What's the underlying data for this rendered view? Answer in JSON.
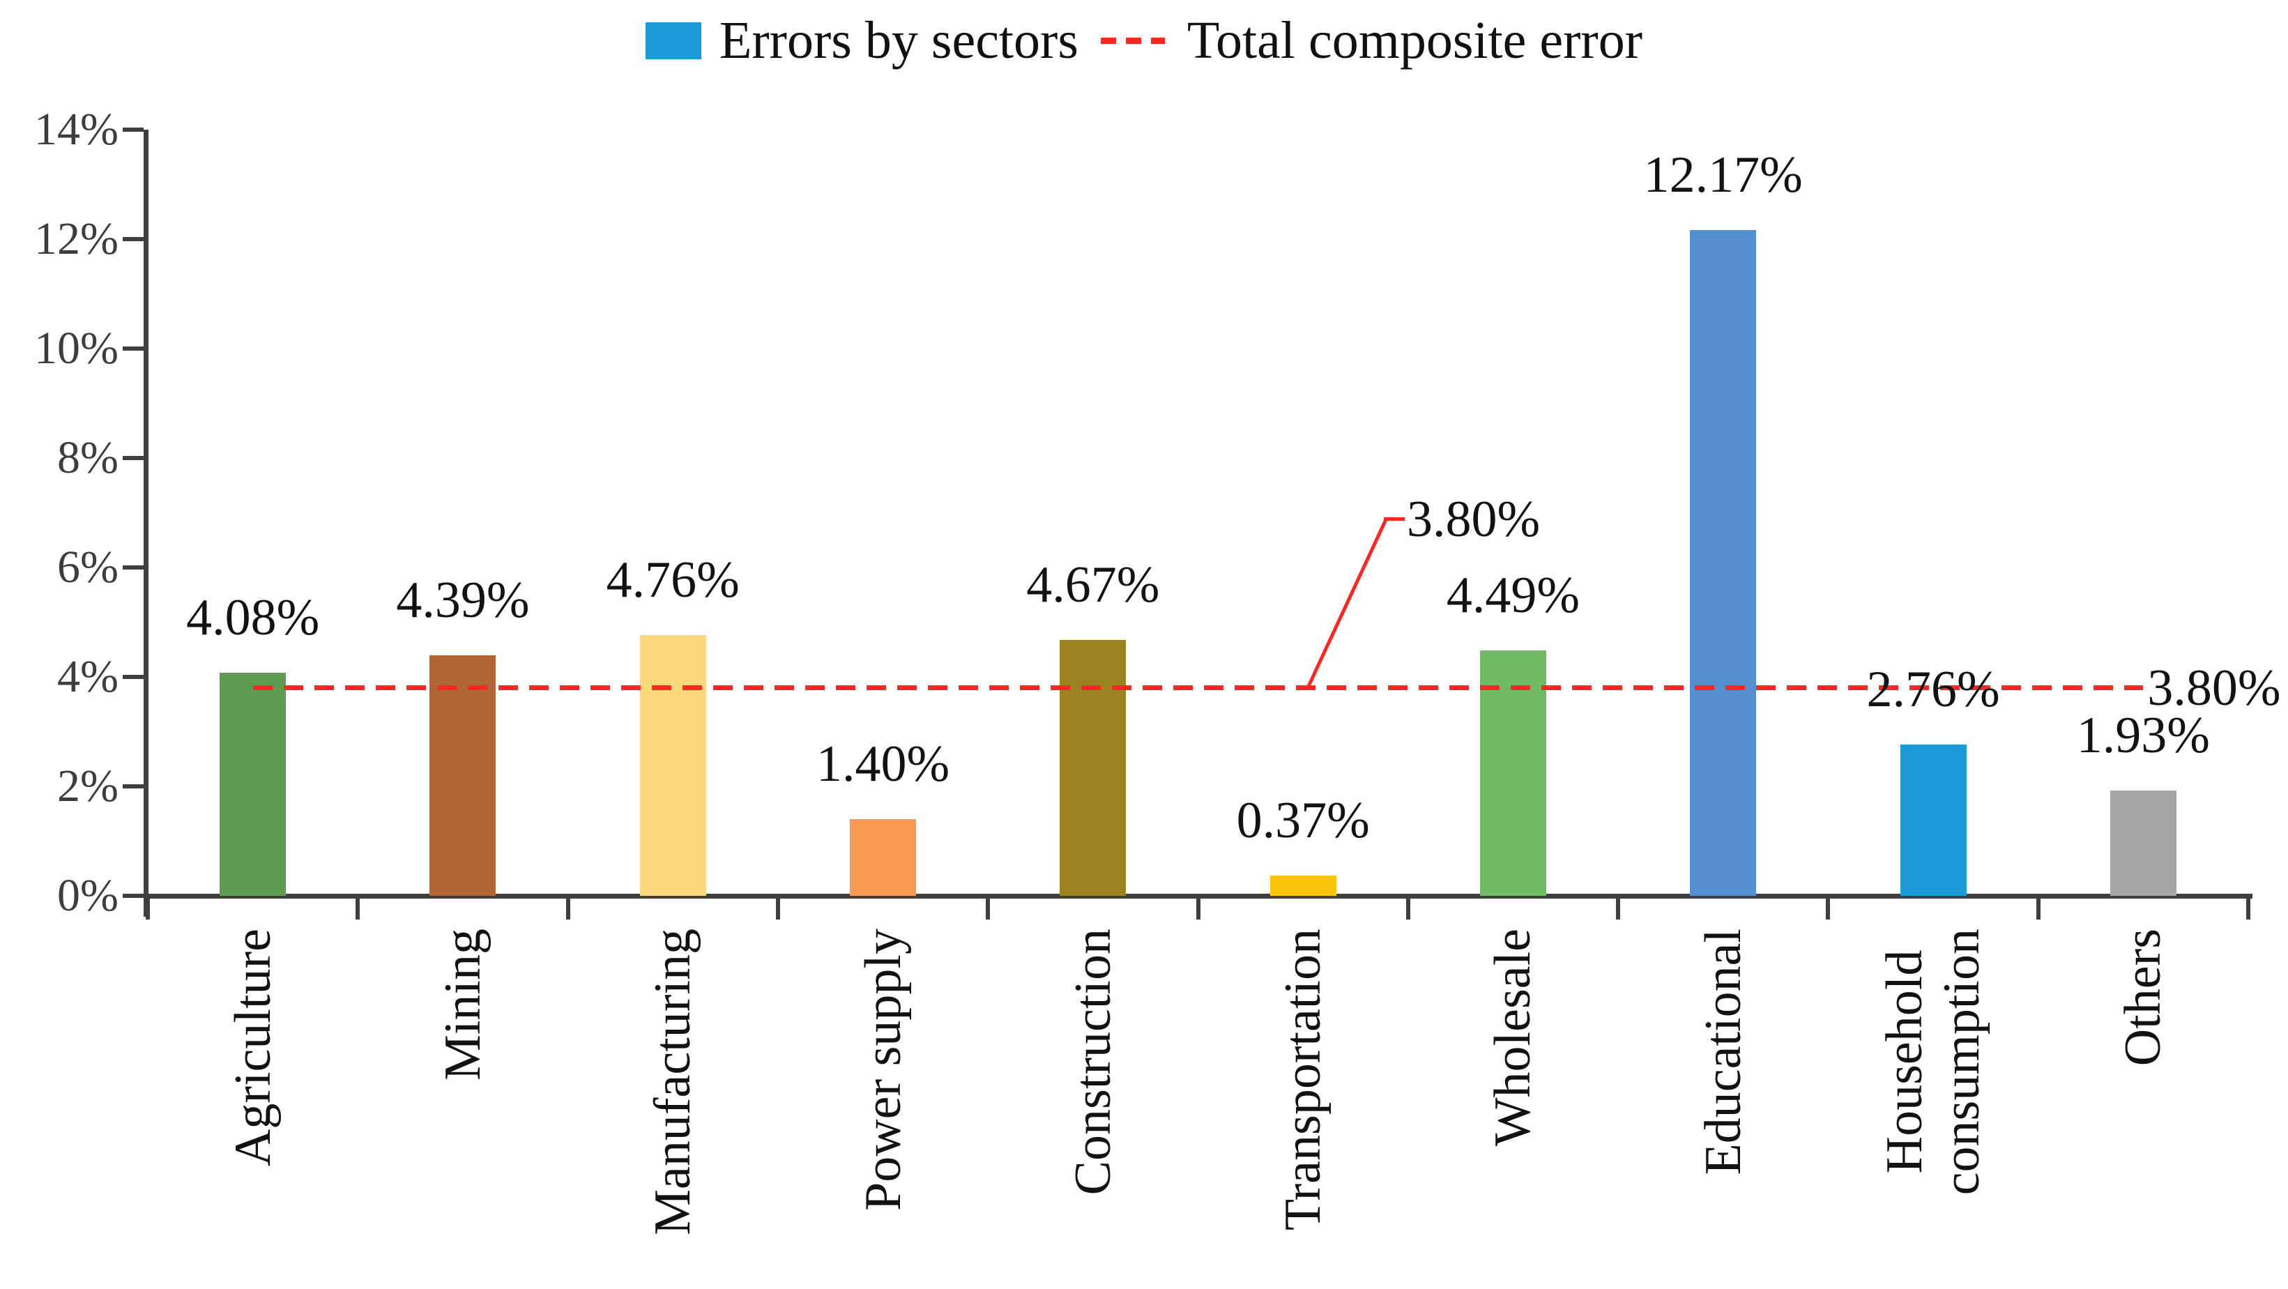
{
  "legend": {
    "bars_label": "Errors by sectors",
    "line_label": "Total composite error"
  },
  "chart_data": {
    "type": "bar",
    "title": "",
    "xlabel": "",
    "ylabel": "",
    "categories": [
      "Agriculture",
      "Mining",
      "Manufacturing",
      "Power supply",
      "Construction",
      "Transportation",
      "Wholesale",
      "Educational",
      "Household consumption",
      "Others"
    ],
    "category_lines": [
      [
        "Agriculture"
      ],
      [
        "Mining"
      ],
      [
        "Manufacturing"
      ],
      [
        "Power supply"
      ],
      [
        "Construction"
      ],
      [
        "Transportation"
      ],
      [
        "Wholesale"
      ],
      [
        "Educational"
      ],
      [
        "Household",
        "consumption"
      ],
      [
        "Others"
      ]
    ],
    "series": [
      {
        "name": "Errors by sectors",
        "type": "bar",
        "values": [
          4.08,
          4.39,
          4.76,
          1.4,
          4.67,
          0.37,
          4.49,
          12.17,
          2.76,
          1.93
        ]
      },
      {
        "name": "Total composite error",
        "type": "line",
        "style": "dashed",
        "values": [
          3.8,
          3.8,
          3.8,
          3.8,
          3.8,
          3.8,
          3.8,
          3.8,
          3.8,
          3.8
        ]
      }
    ],
    "bar_labels": [
      "4.08%",
      "4.39%",
      "4.76%",
      "1.40%",
      "4.67%",
      "0.37%",
      "4.49%",
      "12.17%",
      "2.76%",
      "1.93%"
    ],
    "bar_colors": [
      "#609b52",
      "#b16735",
      "#fbd87c",
      "#f99a52",
      "#9c8322",
      "#fdc50b",
      "#71bb65",
      "#558fce",
      "#1a9bd7",
      "#a6a6a6"
    ],
    "reference_line": {
      "value": 3.8,
      "callout_label": "3.80%",
      "end_label": "3.80%"
    },
    "ylim": [
      0,
      14
    ],
    "ytick_values": [
      0,
      2,
      4,
      6,
      8,
      10,
      12,
      14
    ],
    "ytick_labels": [
      "0%",
      "2%",
      "4%",
      "6%",
      "8%",
      "10%",
      "12%",
      "14%"
    ],
    "grid": false,
    "legend_position": "top"
  },
  "colors": {
    "bar_series_swatch": "#1a9bd7",
    "reference_line": "#fa2823",
    "axis": "#3f3f3f",
    "tick_label": "#3d3d3d",
    "value_label": "#121212",
    "background": "#ffffff"
  }
}
